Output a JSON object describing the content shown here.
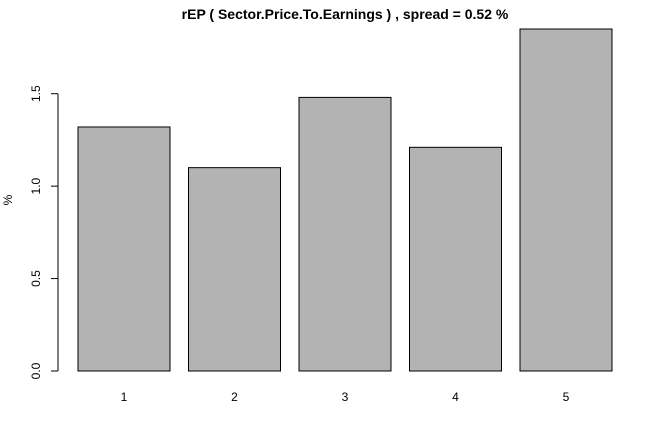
{
  "chart_data": {
    "type": "bar",
    "title": "rEP ( Sector.Price.To.Earnings ) , spread = 0.52 %",
    "xlabel": "",
    "ylabel": "%",
    "categories": [
      "1",
      "2",
      "3",
      "4",
      "5"
    ],
    "values": [
      1.32,
      1.1,
      1.48,
      1.21,
      1.85
    ],
    "ylim": [
      0,
      1.85
    ],
    "yticks": [
      0.0,
      0.5,
      1.0,
      1.5
    ],
    "ytick_labels": [
      "0.0",
      "0.5",
      "1.0",
      "1.5"
    ],
    "grid": false,
    "legend": "none",
    "bar_color": "#b3b3b3",
    "bar_border_color": "#000000"
  }
}
